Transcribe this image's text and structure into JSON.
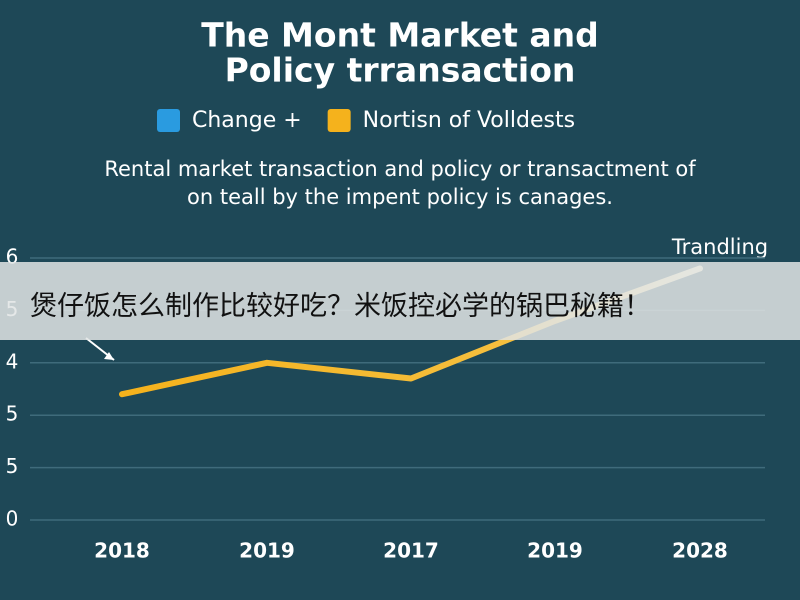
{
  "chart_data": {
    "type": "line",
    "title": [
      "The Mont Market and",
      "Policy trransaction"
    ],
    "subtitle": [
      "Rental market transaction and policy or transactment of",
      "on teall by the impent policy is canages."
    ],
    "categories": [
      "2018",
      "2019",
      "2017",
      "2019",
      "2028"
    ],
    "series": [
      {
        "name": "Change +",
        "color": "#2a9be0"
      },
      {
        "name": "Nortisn of Volldests",
        "color": "#f5b21c",
        "values": [
          2.4,
          3.0,
          2.7,
          3.8,
          4.8
        ]
      }
    ],
    "ylim": [
      0,
      5
    ],
    "yticks": [
      {
        "value": 0,
        "label": "0"
      },
      {
        "value": 1,
        "label": "5"
      },
      {
        "value": 2,
        "label": "5"
      },
      {
        "value": 3,
        "label": "4"
      },
      {
        "value": 4,
        "label": "5"
      },
      {
        "value": 5,
        "label": "6"
      }
    ],
    "annotation": "Trandling",
    "grid": true
  },
  "overlay_caption": "煲仔饭怎么制作比较好吃？米饭控必学的锅巴秘籍！"
}
